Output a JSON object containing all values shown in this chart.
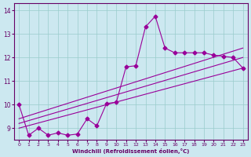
{
  "xlabel": "Windchill (Refroidissement éolien,°C)",
  "bg_color": "#cce8f0",
  "line_color": "#990099",
  "grid_color": "#99cccc",
  "xlim": [
    -0.5,
    23.5
  ],
  "ylim": [
    8.5,
    14.3
  ],
  "xticks": [
    0,
    1,
    2,
    3,
    4,
    5,
    6,
    7,
    8,
    9,
    10,
    11,
    12,
    13,
    14,
    15,
    16,
    17,
    18,
    19,
    20,
    21,
    22,
    23
  ],
  "yticks": [
    9,
    10,
    11,
    12,
    13,
    14
  ],
  "series1_x": [
    0,
    1,
    2,
    3,
    4,
    5,
    6,
    7,
    8,
    9,
    10,
    11,
    12,
    13,
    14,
    15,
    16,
    17,
    18,
    19,
    20,
    21,
    22,
    23
  ],
  "series1_y": [
    10.0,
    8.7,
    9.0,
    8.7,
    8.8,
    8.7,
    8.75,
    9.4,
    9.1,
    10.05,
    10.1,
    11.6,
    11.65,
    13.3,
    13.75,
    12.4,
    12.2,
    12.2,
    12.2,
    12.2,
    12.1,
    12.05,
    12.0,
    11.55
  ],
  "series2_x": [
    0,
    23
  ],
  "series2_y": [
    9.0,
    11.55
  ],
  "series3_x": [
    0,
    23
  ],
  "series3_y": [
    9.2,
    12.0
  ],
  "series4_x": [
    0,
    23
  ],
  "series4_y": [
    9.4,
    12.4
  ]
}
